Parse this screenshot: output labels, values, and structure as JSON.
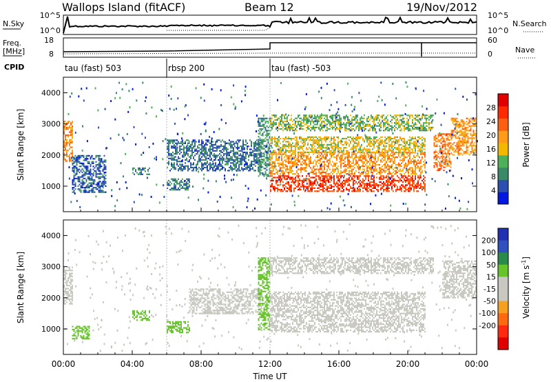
{
  "header": {
    "station": "Wallops Island (fitACF)",
    "beam": "Beam 12",
    "date": "19/Nov/2012"
  },
  "meta_panel": {
    "nsky_label": "N.Sky",
    "nsearch_label": "N.Search",
    "freq_label_line1": "Freq.",
    "freq_label_line2": "[MHz]",
    "nave_label": "Nave",
    "cpid_label": "CPID",
    "noise_ticks_left": [
      "10^5",
      "10^0"
    ],
    "noise_ticks_right": [
      "10^5",
      "10^0"
    ],
    "freq_ticks": [
      "18",
      "8"
    ],
    "nave_ticks": [
      "60",
      "0"
    ],
    "cpid_segments": [
      {
        "label": "tau (fast) 503",
        "start_hour": 0,
        "end_hour": 6
      },
      {
        "label": "rbsp 200",
        "start_hour": 6,
        "end_hour": 12
      },
      {
        "label": "tau (fast) -503",
        "start_hour": 12,
        "end_hour": 24
      }
    ]
  },
  "colors": {
    "power_scale": [
      "#0018e0",
      "#2c4fb0",
      "#3a8a6a",
      "#4fb05a",
      "#f5b800",
      "#ff9a1a",
      "#ff6010",
      "#ff2a00",
      "#e00000"
    ],
    "velocity_scale": [
      "#2030b0",
      "#3050c0",
      "#2a8a4a",
      "#66c42a",
      "#c8c8c0",
      "#c8c8c0",
      "#f5a020",
      "#ff6a10",
      "#ff2a10",
      "#e00000"
    ]
  },
  "chart_data": [
    {
      "type": "heatmap",
      "quantity": "Power",
      "xlabel": "",
      "ylabel": "Slant Range [km]",
      "x_unit": "hour UT",
      "xlim": [
        0,
        24
      ],
      "ylim": [
        180,
        4500
      ],
      "y_ticks": [
        1000,
        2000,
        3000,
        4000
      ],
      "colorbar": {
        "label": "Power [dB]",
        "range": [
          0,
          32
        ],
        "ticks": [
          4,
          8,
          12,
          16,
          20,
          24,
          28
        ]
      },
      "regions": [
        {
          "start_hour": 0.0,
          "end_hour": 0.5,
          "range_km": [
            1800,
            3100
          ],
          "value": 20
        },
        {
          "start_hour": 0.5,
          "end_hour": 2.5,
          "range_km": [
            800,
            2000
          ],
          "value": 6
        },
        {
          "start_hour": 4.0,
          "end_hour": 5.0,
          "range_km": [
            1400,
            1600
          ],
          "value": 9
        },
        {
          "start_hour": 6.0,
          "end_hour": 7.3,
          "range_km": [
            900,
            1250
          ],
          "value": 8
        },
        {
          "start_hour": 6.0,
          "end_hour": 11.5,
          "range_km": [
            1500,
            2500
          ],
          "value": 7
        },
        {
          "start_hour": 11.3,
          "end_hour": 12.0,
          "range_km": [
            1300,
            3200
          ],
          "value": 10
        },
        {
          "start_hour": 12.0,
          "end_hour": 21.0,
          "range_km": [
            850,
            1350
          ],
          "value": 26
        },
        {
          "start_hour": 12.0,
          "end_hour": 21.0,
          "range_km": [
            1400,
            2100
          ],
          "value": 20
        },
        {
          "start_hour": 12.0,
          "end_hour": 21.0,
          "range_km": [
            2100,
            2600
          ],
          "value": 16
        },
        {
          "start_hour": 12.0,
          "end_hour": 21.5,
          "range_km": [
            2800,
            3300
          ],
          "value": 13
        },
        {
          "start_hour": 21.5,
          "end_hour": 22.5,
          "range_km": [
            1500,
            2700
          ],
          "value": 22
        },
        {
          "start_hour": 22.5,
          "end_hour": 24.0,
          "range_km": [
            2000,
            3200
          ],
          "value": 20
        }
      ]
    },
    {
      "type": "heatmap",
      "quantity": "Velocity",
      "xlabel": "Time UT",
      "ylabel": "Slant Range [km]",
      "x_unit": "hour UT",
      "xlim": [
        0,
        24
      ],
      "ylim": [
        180,
        4500
      ],
      "x_ticks": [
        "00:00",
        "04:00",
        "08:00",
        "12:00",
        "16:00",
        "20:00",
        "00:00"
      ],
      "y_ticks": [
        1000,
        2000,
        3000,
        4000
      ],
      "colorbar": {
        "label": "Velocity [m s^-1]",
        "ticks": [
          "200",
          "100",
          "50",
          "15",
          "-15",
          "-50",
          "-100",
          "-200"
        ]
      },
      "regions": [
        {
          "start_hour": 0.0,
          "end_hour": 0.5,
          "range_km": [
            1800,
            3000
          ],
          "value": 0
        },
        {
          "start_hour": 0.5,
          "end_hour": 1.5,
          "range_km": [
            700,
            1100
          ],
          "value": 40
        },
        {
          "start_hour": 4.0,
          "end_hour": 5.0,
          "range_km": [
            1300,
            1600
          ],
          "value": 40
        },
        {
          "start_hour": 6.0,
          "end_hour": 7.3,
          "range_km": [
            900,
            1250
          ],
          "value": 40
        },
        {
          "start_hour": 7.3,
          "end_hour": 11.5,
          "range_km": [
            1500,
            2300
          ],
          "value": 0
        },
        {
          "start_hour": 11.3,
          "end_hour": 12.0,
          "range_km": [
            1000,
            3300
          ],
          "value": 45
        },
        {
          "start_hour": 12.0,
          "end_hour": 21.0,
          "range_km": [
            900,
            2200
          ],
          "value": 0
        },
        {
          "start_hour": 12.0,
          "end_hour": 21.5,
          "range_km": [
            2800,
            3300
          ],
          "value": 0
        },
        {
          "start_hour": 22.0,
          "end_hour": 24.0,
          "range_km": [
            2000,
            3200
          ],
          "value": 0
        }
      ]
    }
  ]
}
